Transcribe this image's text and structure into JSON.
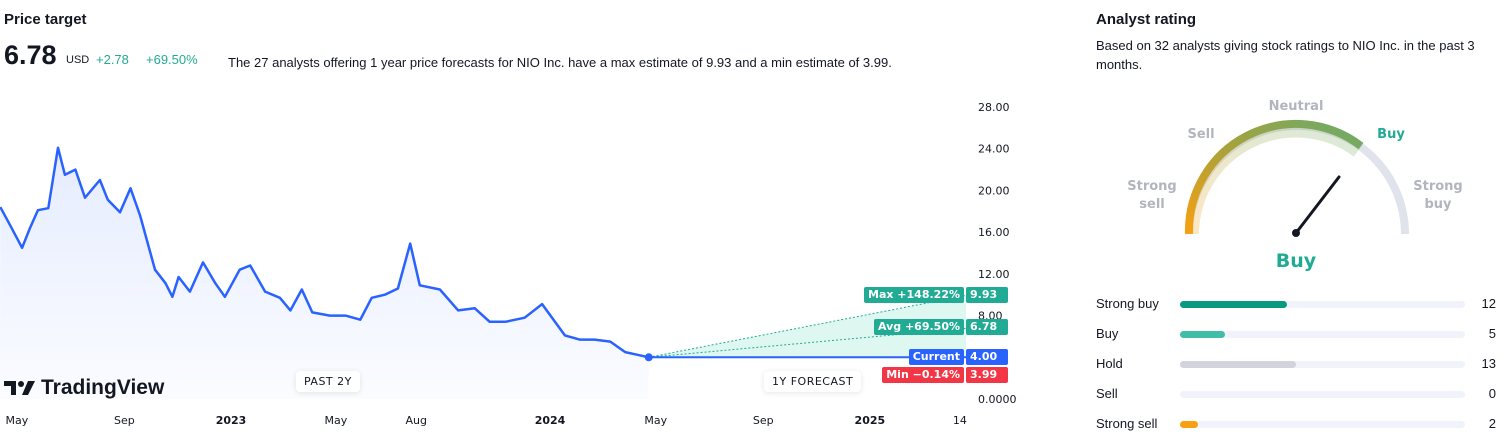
{
  "price_target": {
    "title": "Price target",
    "value": "6.78",
    "currency": "USD",
    "change": "+2.78",
    "change_pct": "+69.50%",
    "description": "The 27 analysts offering 1 year price forecasts for NIO Inc. have a max estimate of 9.93 and a min estimate of 3.99.",
    "logo_text": "TradingView",
    "past_label": "PAST 2Y",
    "forecast_label": "1Y FORECAST"
  },
  "chart_data": {
    "type": "line",
    "y_ticks": [
      "28.00",
      "24.00",
      "20.00",
      "16.00",
      "12.00",
      "8.00",
      "0.0000"
    ],
    "y_tick_values": [
      28,
      24,
      20,
      16,
      12,
      8,
      0
    ],
    "ylim": [
      0,
      28
    ],
    "x_ticks": [
      "May",
      "Sep",
      "2023",
      "May",
      "Aug",
      "2024",
      "May",
      "Sep",
      "2025",
      "14"
    ],
    "x_tick_dates": [
      "2022-05-01",
      "2022-09-01",
      "2023-01-01",
      "2023-05-01",
      "2023-08-01",
      "2024-01-01",
      "2024-05-01",
      "2024-09-01",
      "2025-01-01",
      "2025-04-14"
    ],
    "price": {
      "dates": [
        "2022-04-12",
        "2022-04-23",
        "2022-05-07",
        "2022-05-16",
        "2022-05-25",
        "2022-06-06",
        "2022-06-17",
        "2022-06-25",
        "2022-07-07",
        "2022-07-18",
        "2022-08-04",
        "2022-08-13",
        "2022-08-27",
        "2022-09-08",
        "2022-09-19",
        "2022-10-06",
        "2022-10-18",
        "2022-10-26",
        "2022-11-02",
        "2022-11-15",
        "2022-11-30",
        "2022-12-14",
        "2022-12-25",
        "2023-01-11",
        "2023-01-23",
        "2023-02-09",
        "2023-02-26",
        "2023-03-10",
        "2023-03-23",
        "2023-04-04",
        "2023-04-24",
        "2023-05-12",
        "2023-05-29",
        "2023-06-11",
        "2023-06-26",
        "2023-07-11",
        "2023-07-25",
        "2023-08-05",
        "2023-08-28",
        "2023-09-18",
        "2023-10-07",
        "2023-10-24",
        "2023-11-11",
        "2023-12-03",
        "2023-12-23",
        "2024-01-18",
        "2024-02-04",
        "2024-02-21",
        "2024-03-10",
        "2024-03-27",
        "2024-04-23"
      ],
      "values": [
        18.4,
        16.7,
        14.5,
        16.4,
        18.1,
        18.3,
        24.1,
        21.5,
        22.0,
        19.3,
        21.0,
        19.1,
        17.9,
        20.2,
        17.6,
        12.4,
        11.1,
        9.8,
        11.7,
        10.3,
        13.1,
        11.1,
        9.8,
        12.4,
        12.8,
        10.3,
        9.7,
        8.5,
        10.5,
        8.3,
        8.0,
        8.0,
        7.6,
        9.7,
        10.0,
        10.6,
        14.9,
        10.9,
        10.5,
        8.5,
        8.7,
        7.4,
        7.4,
        7.8,
        9.1,
        6.1,
        5.7,
        5.7,
        5.5,
        4.5,
        4.0
      ]
    },
    "forecast": {
      "start_date": "2024-04-23",
      "end_date": "2025-04-23",
      "max": 9.93,
      "avg": 6.78,
      "current": 4.0,
      "min": 3.99
    },
    "labels": [
      {
        "key": "max",
        "text": "Max +148.22%",
        "value": "9.93",
        "color": "#22ab94"
      },
      {
        "key": "avg",
        "text": "Avg +69.50%",
        "value": "6.78",
        "color": "#22ab94"
      },
      {
        "key": "current",
        "text": "Current",
        "value": "4.00",
        "color": "#2962ff"
      },
      {
        "key": "min",
        "text": "Min −0.14%",
        "value": "3.99",
        "color": "#f23645"
      }
    ],
    "colors": {
      "line": "#2962ff",
      "forecast_fill": "#d6f5ee"
    }
  },
  "analyst": {
    "title": "Analyst rating",
    "description": "Based on 32 analysts giving stock ratings to NIO Inc. in the past 3 months.",
    "gauge_labels": {
      "strong_sell": [
        "Strong",
        "sell"
      ],
      "sell": "Sell",
      "neutral": "Neutral",
      "buy": "Buy",
      "strong_buy": [
        "Strong",
        "buy"
      ]
    },
    "result": "Buy",
    "result_color": "#22ab94",
    "total": 32,
    "ratings": [
      {
        "label": "Strong buy",
        "count": 12,
        "color": "#089981"
      },
      {
        "label": "Buy",
        "count": 5,
        "color": "#42bda8"
      },
      {
        "label": "Hold",
        "count": 13,
        "color": "#d1d4dc"
      },
      {
        "label": "Sell",
        "count": 0,
        "color": "#f7525f"
      },
      {
        "label": "Strong sell",
        "count": 2,
        "color": "#f7a012"
      }
    ]
  }
}
